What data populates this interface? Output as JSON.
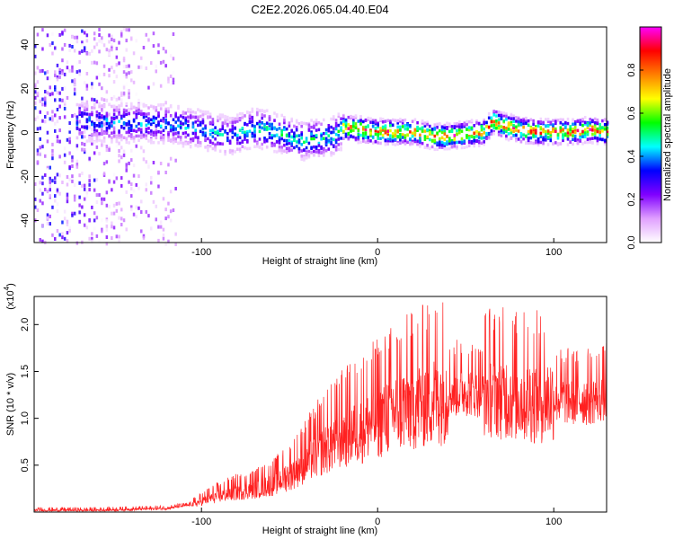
{
  "title": "C2E2.2026.065.04.40.E04",
  "chart_data": [
    {
      "type": "heatmap",
      "name": "spectrogram",
      "xlabel": "Height of straight line (km)",
      "ylabel": "Frequency (Hz)",
      "xlim": [
        -195,
        130
      ],
      "ylim": [
        -50,
        48
      ],
      "xticks": [
        "-100",
        "0",
        "100"
      ],
      "yticks": [
        "40",
        "20",
        "0",
        "-20",
        "-40"
      ],
      "colorbar": {
        "label": "Normalized spectral amplitude",
        "range": [
          0,
          1
        ],
        "ticks": [
          "0.0",
          "0.2",
          "0.4",
          "0.6",
          "0.8"
        ],
        "colors": [
          "#ffffff",
          "#e0a0ff",
          "#8000ff",
          "#0000ff",
          "#00ffff",
          "#00ff00",
          "#ffff00",
          "#ff8000",
          "#ff0000",
          "#ff00ff"
        ]
      },
      "ridge": {
        "x": [
          -170,
          -150,
          -130,
          -115,
          -100,
          -85,
          -70,
          -55,
          -45,
          -35,
          -25,
          -20,
          -10,
          0,
          10,
          20,
          30,
          40,
          50,
          60,
          65,
          70,
          80,
          90,
          100,
          110,
          120,
          130
        ],
        "y": [
          6,
          5,
          5,
          4,
          2,
          -1,
          3,
          0,
          -3,
          -2,
          -1,
          3,
          2,
          1,
          1,
          1,
          -1,
          -1,
          0,
          1,
          6,
          4,
          2,
          1,
          1,
          1,
          2,
          1
        ]
      }
    },
    {
      "type": "line",
      "name": "snr",
      "xlabel": "Height of straight line (km)",
      "ylabel": "SNR (10 * v/v)",
      "yscale_label": "(x10",
      "yscale_exp": "4",
      "xlim": [
        -195,
        130
      ],
      "ylim": [
        0,
        2.3
      ],
      "xticks": [
        "-100",
        "0",
        "100"
      ],
      "yticks": [
        "0.5",
        "1.0",
        "1.5",
        "2.0"
      ],
      "color": "#ff2020",
      "envelope": {
        "x": [
          -195,
          -160,
          -120,
          -105,
          -95,
          -80,
          -70,
          -60,
          -50,
          -40,
          -30,
          -25,
          -20,
          -10,
          0,
          10,
          20,
          30,
          40,
          50,
          60,
          70,
          80,
          90,
          100,
          110,
          120,
          130
        ],
        "y": [
          0.02,
          0.02,
          0.04,
          0.08,
          0.15,
          0.22,
          0.25,
          0.3,
          0.4,
          0.55,
          0.7,
          0.75,
          0.82,
          0.9,
          1.0,
          1.1,
          1.15,
          1.22,
          1.28,
          1.3,
          1.28,
          1.25,
          1.22,
          1.2,
          1.22,
          1.2,
          1.2,
          1.25
        ]
      }
    }
  ]
}
